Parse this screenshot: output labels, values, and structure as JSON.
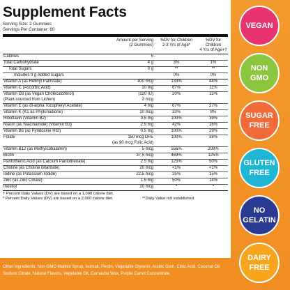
{
  "title": "Supplement Facts",
  "serving_size": "Serving Size: 2 Gummies",
  "servings_per_container": "Servings Per Container: 60",
  "header": {
    "amount": "Amount per Serving",
    "amount_sub": "(2 Gummies)",
    "dv_children": "%DV for Children",
    "dv_children_sub": "2-3 Yrs of Age*",
    "dv_children4": "%DV for Children",
    "dv_children4_sub": "4 Yrs of Age+†"
  },
  "rows": [
    {
      "name": "Calories",
      "amount": "5",
      "dv1": "",
      "dv2": "",
      "indent": 0,
      "sep": "thick"
    },
    {
      "name": "Total Carbohydrate",
      "amount": "4 g",
      "dv1": "3%",
      "dv2": "1%",
      "indent": 0,
      "sep": "line"
    },
    {
      "name": "Total Sugars",
      "amount": "0 g",
      "dv1": "**",
      "dv2": "**",
      "indent": 1,
      "sep": "line"
    },
    {
      "name": "Includes 0 g Added Sugars",
      "amount": "",
      "dv1": "0%",
      "dv2": "0%",
      "indent": 2,
      "sep": "line"
    },
    {
      "name": "Vitamin A (as Retinyl Palmitate)",
      "amount": "400 mcg",
      "dv1": "133%",
      "dv2": "44%",
      "indent": 0,
      "sep": "thick"
    },
    {
      "name": "Vitamin C (Ascorbic Acid)",
      "amount": "10 mg",
      "dv1": "67%",
      "dv2": "11%",
      "indent": 0,
      "sep": "line"
    },
    {
      "name": "Vitamin D3 (as Vegan Cholecalciferol)",
      "amount": "(120 IU)",
      "dv1": "20%",
      "dv2": "15%",
      "indent": 0,
      "sep": "line"
    },
    {
      "name": "(Plant-sourced from Lichen)",
      "amount": "3 mcg",
      "dv1": "",
      "dv2": "",
      "indent": 0,
      "sep": "none"
    },
    {
      "name": "Vitamin E (as dl-alpha Tocopheryl Acetate)",
      "amount": "4 mg",
      "dv1": "67%",
      "dv2": "27%",
      "indent": 0,
      "sep": "line"
    },
    {
      "name": "Vitamin K (K1 as Phytonadione)",
      "amount": "10 mcg",
      "dv1": "33%",
      "dv2": "8%",
      "indent": 0,
      "sep": "line"
    },
    {
      "name": "Riboflavin (Vitamin B2)",
      "amount": "0.5 mg",
      "dv1": "100%",
      "dv2": "39%",
      "indent": 0,
      "sep": "line"
    },
    {
      "name": "Niacin (as Niacinamide) (Vitamin B3)",
      "amount": "2.5 mg",
      "dv1": "42%",
      "dv2": "16%",
      "indent": 0,
      "sep": "line"
    },
    {
      "name": "Vitamin B6 (as Pyridoxine HCl)",
      "amount": "0.5 mg",
      "dv1": "100%",
      "dv2": "29%",
      "indent": 0,
      "sep": "line"
    },
    {
      "name": "Folate",
      "amount": "150 mcg DFE",
      "dv1": "100%",
      "dv2": "38%",
      "indent": 0,
      "sep": "line"
    },
    {
      "name": "",
      "amount": "(as 90 mcg Folic Acid)",
      "dv1": "",
      "dv2": "",
      "indent": 0,
      "sep": "none"
    },
    {
      "name": "Vitamin B12 (as Methylcobalamin)",
      "amount": "5 mcg",
      "dv1": "556%",
      "dv2": "208%",
      "indent": 0,
      "sep": "line"
    },
    {
      "name": "Biotin",
      "amount": "37.5 mcg",
      "dv1": "469%",
      "dv2": "125%",
      "indent": 0,
      "sep": "line"
    },
    {
      "name": "Pantothenic Acid (as Calcium Pantothenate)",
      "amount": "2.5 mg",
      "dv1": "125%",
      "dv2": "50%",
      "indent": 0,
      "sep": "line"
    },
    {
      "name": "Choline (as Choline Bitartrate)",
      "amount": "20 mcg",
      "dv1": "<1%",
      "dv2": "<1%",
      "indent": 0,
      "sep": "line"
    },
    {
      "name": "Iodine (as Potassium Iodide)",
      "amount": "22.5 mcg",
      "dv1": "25%",
      "dv2": "15%",
      "indent": 0,
      "sep": "line"
    },
    {
      "name": "Zinc (as Zinc Citrate)",
      "amount": "1.5 mg",
      "dv1": "50%",
      "dv2": "14%",
      "indent": 0,
      "sep": "line"
    },
    {
      "name": "Inositol",
      "amount": "20 mcg",
      "dv1": "*",
      "dv2": "*",
      "indent": 0,
      "sep": "line"
    }
  ],
  "footnotes": {
    "f1": "† Percent Daily Values (DV) are based on a 1,000 calorie diet.",
    "f2": "* Percent Daily Values (DV) are based on a 2,000 calorie diet.",
    "f2b": "**Daily Value not established."
  },
  "other_ingredients": "Other Ingredients: Non-GMO Maltitol Syrup, Isomalt, Pectin, Vegetable Glycerin, Arabic Gum, Citric Acid, Coconut Oil, Sodium Citrate, Natural Flavors, Vegetable Oil, Carnauba Wax, Purple Carrot Concentrate.",
  "badges": [
    {
      "line1": "VEGAN",
      "line2": "",
      "color": "#e8336f"
    },
    {
      "line1": "NON",
      "line2": "GMO",
      "color": "#8cc63e"
    },
    {
      "line1": "SUGAR",
      "line2": "FREE",
      "color": "#f26a3a"
    },
    {
      "line1": "GLUTEN",
      "line2": "FREE",
      "color": "#1fb6d6"
    },
    {
      "line1": "NO",
      "line2": "GELATIN",
      "color": "#2a3a93"
    },
    {
      "line1": "DAIRY",
      "line2": "FREE",
      "color": "#f6a51c"
    }
  ]
}
